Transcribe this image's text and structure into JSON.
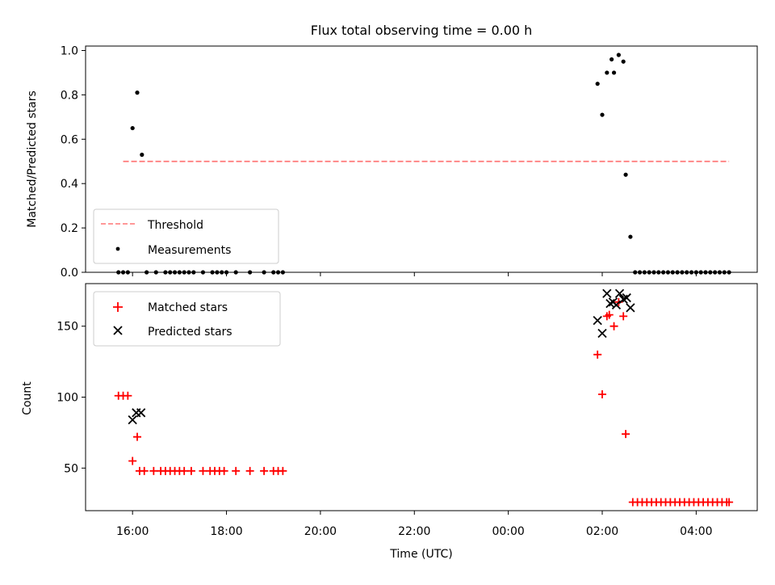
{
  "chart_data": [
    {
      "type": "scatter",
      "title": "Flux total observing time = 0.00 h",
      "ylabel": "Matched/Predicted stars",
      "xlabel": "",
      "ylim": [
        0,
        1.02
      ],
      "yticks": [
        0.0,
        0.2,
        0.4,
        0.6,
        0.8,
        1.0
      ],
      "ytick_labels": [
        "0.0",
        "0.2",
        "0.4",
        "0.6",
        "0.8",
        "1.0"
      ],
      "legend_position": "lower-left",
      "colors": {
        "threshold": "#ff7777",
        "measurements": "#000000"
      },
      "series": [
        {
          "name": "Threshold",
          "kind": "dashed-line",
          "x": [
            -0.2,
            12.7
          ],
          "y": [
            0.5,
            0.5
          ]
        },
        {
          "name": "Measurements",
          "kind": "scatter",
          "x": [
            -0.3,
            -0.2,
            -0.1,
            0.0,
            0.1,
            0.2,
            0.3,
            0.5,
            0.7,
            0.8,
            0.9,
            1.0,
            1.1,
            1.2,
            1.3,
            1.5,
            1.7,
            1.8,
            1.9,
            2.0,
            2.2,
            2.5,
            2.8,
            3.0,
            3.1,
            3.2,
            9.9,
            10.0,
            10.1,
            10.2,
            10.25,
            10.35,
            10.45,
            10.5,
            10.6,
            10.7,
            10.8,
            10.9,
            11.0,
            11.1,
            11.2,
            11.3,
            11.4,
            11.5,
            11.6,
            11.7,
            11.8,
            11.9,
            12.0,
            12.1,
            12.2,
            12.3,
            12.4,
            12.5,
            12.6,
            12.7
          ],
          "y": [
            0.0,
            0.0,
            0.0,
            0.65,
            0.81,
            0.53,
            0.0,
            0.0,
            0.0,
            0.0,
            0.0,
            0.0,
            0.0,
            0.0,
            0.0,
            0.0,
            0.0,
            0.0,
            0.0,
            0.0,
            0.0,
            0.0,
            0.0,
            0.0,
            0.0,
            0.0,
            0.85,
            0.71,
            0.9,
            0.96,
            0.9,
            0.98,
            0.95,
            0.44,
            0.16,
            0.0,
            0.0,
            0.0,
            0.0,
            0.0,
            0.0,
            0.0,
            0.0,
            0.0,
            0.0,
            0.0,
            0.0,
            0.0,
            0.0,
            0.0,
            0.0,
            0.0,
            0.0,
            0.0,
            0.0,
            0.0
          ]
        }
      ]
    },
    {
      "type": "scatter",
      "title": "",
      "ylabel": "Count",
      "xlabel": "Time (UTC)",
      "ylim": [
        20,
        180
      ],
      "yticks": [
        50,
        100,
        150
      ],
      "ytick_labels": [
        "50",
        "100",
        "150"
      ],
      "xlim": [
        -1.0,
        13.3
      ],
      "xticks": [
        0,
        2,
        4,
        6,
        8,
        10,
        12
      ],
      "xtick_labels": [
        "16:00",
        "18:00",
        "20:00",
        "22:00",
        "00:00",
        "02:00",
        "04:00"
      ],
      "legend_position": "upper-left",
      "colors": {
        "matched": "#ff0000",
        "predicted": "#000000"
      },
      "series": [
        {
          "name": "Matched stars",
          "marker": "+",
          "x": [
            -0.3,
            -0.2,
            -0.1,
            0.0,
            0.1,
            0.15,
            0.25,
            0.45,
            0.6,
            0.7,
            0.8,
            0.9,
            1.0,
            1.1,
            1.25,
            1.5,
            1.65,
            1.75,
            1.85,
            1.95,
            2.2,
            2.5,
            2.8,
            3.0,
            3.1,
            3.2,
            9.9,
            10.0,
            10.1,
            10.15,
            10.25,
            10.35,
            10.45,
            10.5,
            10.65,
            10.75,
            10.85,
            10.95,
            11.05,
            11.15,
            11.25,
            11.35,
            11.45,
            11.55,
            11.65,
            11.75,
            11.85,
            11.95,
            12.05,
            12.15,
            12.25,
            12.35,
            12.45,
            12.55,
            12.65,
            12.7
          ],
          "y": [
            101,
            101,
            101,
            55,
            72,
            48,
            48,
            48,
            48,
            48,
            48,
            48,
            48,
            48,
            48,
            48,
            48,
            48,
            48,
            48,
            48,
            48,
            48,
            48,
            48,
            48,
            130,
            102,
            157,
            158,
            150,
            167,
            157,
            74,
            26,
            26,
            26,
            26,
            26,
            26,
            26,
            26,
            26,
            26,
            26,
            26,
            26,
            26,
            26,
            26,
            26,
            26,
            26,
            26,
            26,
            26
          ]
        },
        {
          "name": "Predicted stars",
          "marker": "x",
          "x": [
            0.0,
            0.08,
            0.18,
            9.9,
            10.0,
            10.1,
            10.17,
            10.23,
            10.3,
            10.37,
            10.45,
            10.52,
            10.6
          ],
          "y": [
            84,
            89,
            89,
            154,
            145,
            173,
            166,
            167,
            165,
            173,
            169,
            170,
            163
          ]
        }
      ]
    }
  ]
}
